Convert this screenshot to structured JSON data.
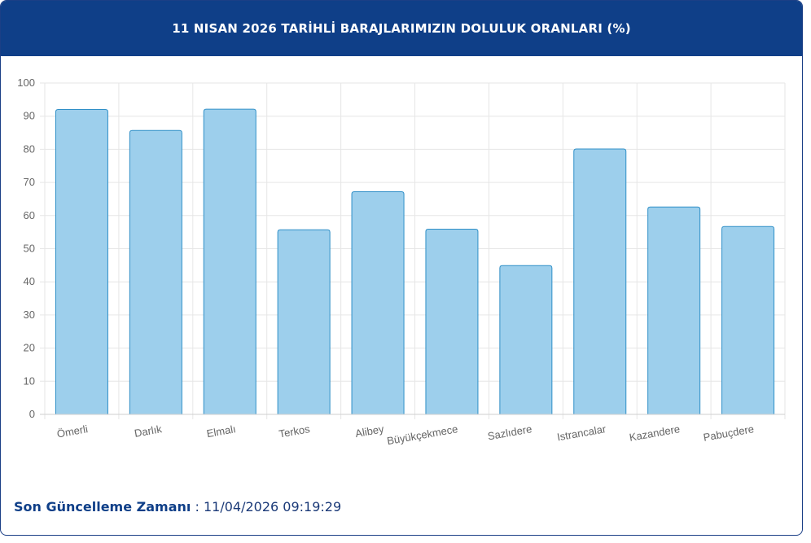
{
  "header": {
    "title": "11 NISAN 2026 TARİHLİ BARAJLARIMIZIN DOLULUK ORANLARI (%)"
  },
  "footer": {
    "label": "Son Güncelleme Zamanı",
    "separator": " : ",
    "value": "11/04/2026 09:19:29"
  },
  "colors": {
    "header_bg": "#0f3f88",
    "bar_fill": "#9dcfec",
    "bar_stroke": "#2f8fc7",
    "grid": "#e6e6e6"
  },
  "chart_data": {
    "type": "bar",
    "title": "11 NISAN 2026 TARİHLİ BARAJLARIMIZIN DOLULUK ORANLARI (%)",
    "categories": [
      "Ömerli",
      "Darlık",
      "Elmalı",
      "Terkos",
      "Alibey",
      "Büyükçekmece",
      "Sazlıdere",
      "Istrancalar",
      "Kazandere",
      "Pabuçdere"
    ],
    "values": [
      92,
      85.7,
      92.1,
      55.7,
      67.2,
      55.9,
      44.9,
      80.1,
      62.6,
      56.7
    ],
    "ylim": [
      0,
      100
    ],
    "yticks": [
      0,
      10,
      20,
      30,
      40,
      50,
      60,
      70,
      80,
      90,
      100
    ],
    "grid": true,
    "legend": "none"
  }
}
